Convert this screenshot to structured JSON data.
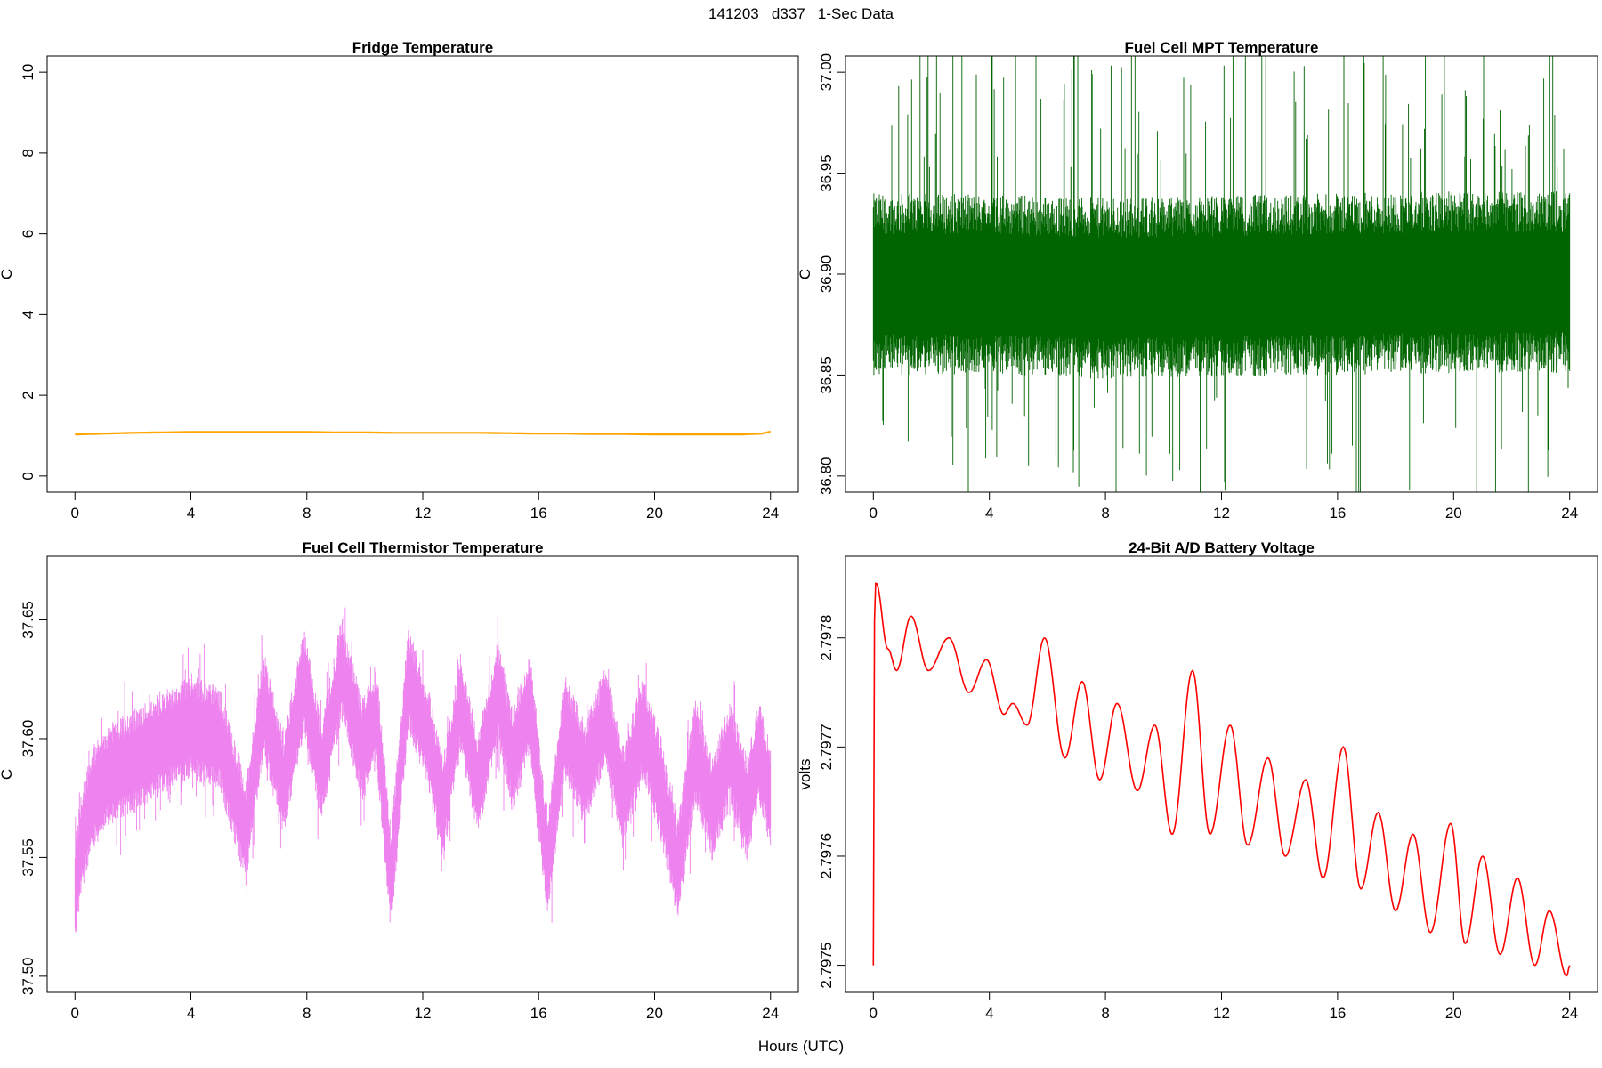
{
  "header": {
    "title": "141203   d337   1-Sec Data"
  },
  "xlabel": "Hours (UTC)",
  "chart_data": [
    {
      "type": "line",
      "title": "Fridge Temperature",
      "ylabel": "C",
      "color": "#FFA500",
      "xlim": [
        0,
        24
      ],
      "ylim": [
        0,
        10
      ],
      "xticks": [
        0,
        4,
        8,
        12,
        16,
        20,
        24
      ],
      "yticks": [
        0,
        2,
        4,
        6,
        8,
        10
      ],
      "ytick_labels": [
        "0",
        "2",
        "4",
        "6",
        "8",
        "10"
      ],
      "series": [
        {
          "x": [
            0,
            1,
            2,
            3,
            4,
            5,
            6,
            7,
            8,
            9,
            10,
            11,
            12,
            13,
            14,
            15,
            16,
            17,
            18,
            19,
            20,
            21,
            22,
            23,
            23.7,
            24
          ],
          "y": [
            1.03,
            1.05,
            1.07,
            1.08,
            1.09,
            1.09,
            1.09,
            1.09,
            1.09,
            1.08,
            1.08,
            1.07,
            1.07,
            1.07,
            1.07,
            1.06,
            1.05,
            1.05,
            1.04,
            1.04,
            1.03,
            1.03,
            1.03,
            1.03,
            1.05,
            1.1
          ],
          "noise": 0.025
        }
      ]
    },
    {
      "type": "line",
      "title": "Fuel Cell MPT Temperature",
      "ylabel": "C",
      "color": "#006400",
      "xlim": [
        0,
        24
      ],
      "ylim": [
        36.8,
        37.0
      ],
      "xticks": [
        0,
        4,
        8,
        12,
        16,
        20,
        24
      ],
      "yticks": [
        36.8,
        36.85,
        36.9,
        36.95,
        37.0
      ],
      "ytick_labels": [
        "36.80",
        "36.85",
        "36.90",
        "36.95",
        "37.00"
      ],
      "series": [
        {
          "x": [
            0,
            4,
            8,
            12,
            16,
            20,
            24
          ],
          "y": [
            36.895,
            36.895,
            36.893,
            36.894,
            36.895,
            36.896,
            36.896
          ],
          "band": 0.045,
          "spike_max": 37.02,
          "spike_min": 36.78
        }
      ]
    },
    {
      "type": "line",
      "title": "Fuel Cell Thermistor Temperature",
      "ylabel": "C",
      "color": "#EE82EE",
      "xlim": [
        0,
        24
      ],
      "ylim": [
        37.5,
        37.67
      ],
      "xticks": [
        0,
        4,
        8,
        12,
        16,
        20,
        24
      ],
      "yticks": [
        37.5,
        37.55,
        37.6,
        37.65
      ],
      "ytick_labels": [
        "37.50",
        "37.55",
        "37.60",
        "37.65"
      ],
      "series": [
        {
          "x": [
            0,
            0.2,
            0.6,
            1.2,
            2.0,
            3.0,
            4.0,
            5.0,
            5.9,
            6.5,
            7.2,
            7.9,
            8.5,
            9.2,
            9.9,
            10.4,
            10.9,
            11.5,
            12.2,
            12.7,
            13.3,
            13.9,
            14.6,
            15.1,
            15.7,
            16.3,
            16.9,
            17.6,
            18.3,
            18.9,
            19.6,
            20.2,
            20.8,
            21.4,
            22.0,
            22.6,
            23.2,
            23.6,
            24.0
          ],
          "y": [
            37.535,
            37.555,
            37.575,
            37.585,
            37.59,
            37.598,
            37.605,
            37.6,
            37.56,
            37.615,
            37.58,
            37.625,
            37.585,
            37.63,
            37.595,
            37.61,
            37.54,
            37.625,
            37.6,
            37.57,
            37.615,
            37.58,
            37.62,
            37.59,
            37.615,
            37.545,
            37.605,
            37.585,
            37.61,
            37.575,
            37.605,
            37.58,
            37.545,
            37.595,
            37.57,
            37.595,
            37.57,
            37.595,
            37.575
          ],
          "band": 0.022
        }
      ]
    },
    {
      "type": "line",
      "title": "24-Bit A/D Battery Voltage",
      "ylabel": "volts",
      "color": "#FF0000",
      "xlim": [
        0,
        24
      ],
      "ylim": [
        2.79749,
        2.79786
      ],
      "xticks": [
        0,
        4,
        8,
        12,
        16,
        20,
        24
      ],
      "yticks": [
        2.7975,
        2.7976,
        2.7977,
        2.7978
      ],
      "ytick_labels": [
        "2.7975",
        "2.7976",
        "2.7977",
        "2.7978"
      ],
      "series": [
        {
          "x": [
            0,
            0.05,
            0.1,
            0.5,
            0.8,
            1.3,
            1.9,
            2.6,
            3.3,
            3.9,
            4.5,
            4.8,
            5.3,
            5.9,
            6.6,
            7.2,
            7.8,
            8.4,
            9.1,
            9.7,
            10.3,
            11.0,
            11.6,
            12.3,
            12.9,
            13.6,
            14.2,
            14.9,
            15.5,
            16.2,
            16.8,
            17.4,
            18.0,
            18.6,
            19.2,
            19.9,
            20.4,
            21.0,
            21.6,
            22.2,
            22.8,
            23.3,
            23.9,
            24.0
          ],
          "y": [
            2.7975,
            2.79785,
            2.79785,
            2.79779,
            2.79777,
            2.79782,
            2.79777,
            2.7978,
            2.79775,
            2.79778,
            2.79773,
            2.79774,
            2.79772,
            2.7978,
            2.79769,
            2.79776,
            2.79767,
            2.79774,
            2.79766,
            2.79772,
            2.79762,
            2.79777,
            2.79762,
            2.79772,
            2.79761,
            2.79769,
            2.7976,
            2.79767,
            2.79758,
            2.7977,
            2.79757,
            2.79764,
            2.79755,
            2.79762,
            2.79753,
            2.79763,
            2.79752,
            2.7976,
            2.79751,
            2.79758,
            2.7975,
            2.79755,
            2.79749,
            2.7975
          ],
          "width": 1.6
        }
      ]
    }
  ]
}
